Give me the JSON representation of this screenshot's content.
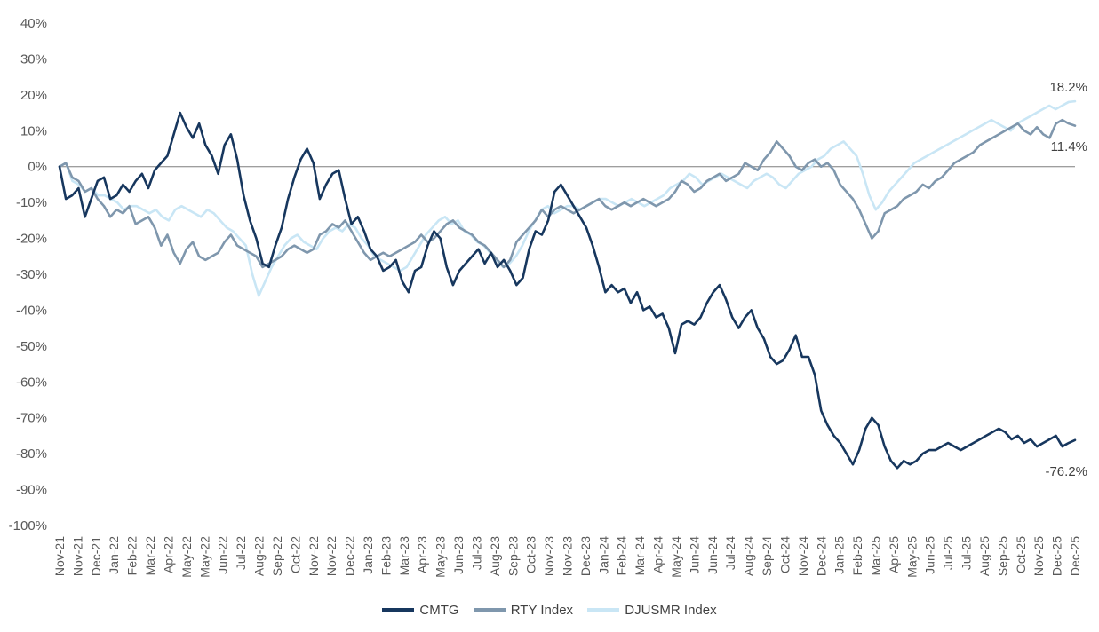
{
  "chart_data": {
    "type": "line",
    "title": "",
    "xlabel": "",
    "ylabel": "",
    "ylim": [
      -100,
      40
    ],
    "y_ticks": [
      "40%",
      "30%",
      "20%",
      "10%",
      "0%",
      "-10%",
      "-20%",
      "-30%",
      "-40%",
      "-50%",
      "-60%",
      "-70%",
      "-80%",
      "-90%",
      "-100%"
    ],
    "x_ticks": [
      "Nov-21",
      "Nov-21",
      "Dec-21",
      "Jan-22",
      "Feb-22",
      "Mar-22",
      "Apr-22",
      "May-22",
      "May-22",
      "Jun-22",
      "Jul-22",
      "Aug-22",
      "Sep-22",
      "Oct-22",
      "Nov-22",
      "Nov-22",
      "Dec-22",
      "Jan-23",
      "Feb-23",
      "Mar-23",
      "Apr-23",
      "May-23",
      "Jun-23",
      "Jul-23",
      "Aug-23",
      "Sep-23",
      "Oct-23",
      "Nov-23",
      "Nov-23",
      "Dec-23",
      "Jan-24",
      "Feb-24",
      "Mar-24",
      "Apr-24",
      "May-24",
      "Jun-24",
      "Jun-24",
      "Jul-24",
      "Aug-24",
      "Sep-24",
      "Oct-24",
      "Nov-24",
      "Dec-24",
      "Jan-25",
      "Feb-25",
      "Mar-25",
      "Apr-25",
      "May-25",
      "Jun-25",
      "Jul-25",
      "Jul-25",
      "Aug-25",
      "Sep-25",
      "Oct-25",
      "Nov-25",
      "Dec-25",
      "Dec-25"
    ],
    "grid": false,
    "zero_line": true,
    "legend_position": "bottom",
    "series": [
      {
        "name": "CMTG",
        "color": "#17375e",
        "end_label": "-76.2%",
        "values": [
          0,
          -9,
          -8,
          -6,
          -14,
          -9,
          -4,
          -3,
          -9,
          -8,
          -5,
          -7,
          -4,
          -2,
          -6,
          -1,
          1,
          3,
          9,
          15,
          11,
          8,
          12,
          6,
          3,
          -2,
          6,
          9,
          2,
          -8,
          -15,
          -20,
          -27,
          -28,
          -22,
          -17,
          -9,
          -3,
          2,
          5,
          1,
          -9,
          -5,
          -2,
          -1,
          -9,
          -16,
          -14,
          -18,
          -23,
          -25,
          -29,
          -28,
          -26,
          -32,
          -35,
          -29,
          -28,
          -22,
          -18,
          -20,
          -28,
          -33,
          -29,
          -27,
          -25,
          -23,
          -27,
          -24,
          -28,
          -26,
          -29,
          -33,
          -31,
          -23,
          -18,
          -19,
          -15,
          -7,
          -5,
          -8,
          -11,
          -14,
          -17,
          -22,
          -28,
          -35,
          -33,
          -35,
          -34,
          -38,
          -35,
          -40,
          -39,
          -42,
          -41,
          -45,
          -52,
          -44,
          -43,
          -44,
          -42,
          -38,
          -35,
          -33,
          -37,
          -42,
          -45,
          -42,
          -40,
          -45,
          -48,
          -53,
          -55,
          -54,
          -51,
          -47,
          -53,
          -53,
          -58,
          -68,
          -72,
          -75,
          -77,
          -80,
          -83,
          -79,
          -73,
          -70,
          -72,
          -78,
          -82,
          -84,
          -82,
          -83,
          -82,
          -80,
          -79,
          -79,
          -78,
          -77,
          -78,
          -79,
          -78,
          -77,
          -76,
          -75,
          -74,
          -73,
          -74,
          -76,
          -75,
          -77,
          -76,
          -78,
          -77,
          -76,
          -75,
          -78,
          -77,
          -76.2
        ]
      },
      {
        "name": "RTY Index",
        "color": "#7f97ad",
        "end_label": "11.4%",
        "values": [
          0,
          1,
          -3,
          -4,
          -7,
          -6,
          -9,
          -11,
          -14,
          -12,
          -13,
          -11,
          -16,
          -15,
          -14,
          -17,
          -22,
          -19,
          -24,
          -27,
          -23,
          -21,
          -25,
          -26,
          -25,
          -24,
          -21,
          -19,
          -22,
          -23,
          -24,
          -25,
          -28,
          -27,
          -26,
          -25,
          -23,
          -22,
          -23,
          -24,
          -23,
          -19,
          -18,
          -16,
          -17,
          -15,
          -18,
          -21,
          -24,
          -26,
          -25,
          -24,
          -25,
          -24,
          -23,
          -22,
          -21,
          -19,
          -21,
          -20,
          -18,
          -16,
          -15,
          -17,
          -18,
          -19,
          -21,
          -22,
          -24,
          -26,
          -28,
          -26,
          -21,
          -19,
          -17,
          -15,
          -12,
          -14,
          -12,
          -11,
          -12,
          -13,
          -12,
          -11,
          -10,
          -9,
          -11,
          -12,
          -11,
          -10,
          -11,
          -10,
          -9,
          -10,
          -11,
          -10,
          -9,
          -7,
          -4,
          -5,
          -7,
          -6,
          -4,
          -3,
          -2,
          -4,
          -3,
          -2,
          1,
          0,
          -1,
          2,
          4,
          7,
          5,
          3,
          0,
          -1,
          1,
          2,
          0,
          1,
          -1,
          -5,
          -7,
          -9,
          -12,
          -16,
          -20,
          -18,
          -13,
          -12,
          -11,
          -9,
          -8,
          -7,
          -5,
          -6,
          -4,
          -3,
          -1,
          1,
          2,
          3,
          4,
          6,
          7,
          8,
          9,
          10,
          11,
          12,
          10,
          9,
          11,
          9,
          8,
          12,
          13,
          12,
          11.4
        ]
      },
      {
        "name": "DJUSMR Index",
        "color": "#c9e6f5",
        "end_label": "18.2%",
        "values": [
          0,
          1,
          -4,
          -5,
          -7,
          -6,
          -8,
          -8,
          -9,
          -10,
          -12,
          -11,
          -11,
          -12,
          -13,
          -12,
          -14,
          -15,
          -12,
          -11,
          -12,
          -13,
          -14,
          -12,
          -13,
          -15,
          -17,
          -18,
          -20,
          -22,
          -30,
          -36,
          -32,
          -28,
          -25,
          -22,
          -20,
          -19,
          -21,
          -22,
          -23,
          -20,
          -18,
          -17,
          -18,
          -16,
          -17,
          -20,
          -22,
          -25,
          -26,
          -27,
          -28,
          -29,
          -28,
          -25,
          -22,
          -19,
          -17,
          -15,
          -14,
          -16,
          -15,
          -18,
          -19,
          -21,
          -22,
          -24,
          -26,
          -28,
          -27,
          -25,
          -22,
          -18,
          -15,
          -12,
          -11,
          -13,
          -12,
          -11,
          -11,
          -12,
          -11,
          -10,
          -9,
          -9,
          -10,
          -11,
          -10,
          -9,
          -10,
          -11,
          -10,
          -9,
          -8,
          -6,
          -5,
          -4,
          -2,
          -3,
          -5,
          -4,
          -3,
          -2,
          -3,
          -4,
          -5,
          -6,
          -4,
          -3,
          -2,
          -3,
          -5,
          -6,
          -4,
          -2,
          -1,
          0,
          2,
          3,
          5,
          6,
          7,
          5,
          3,
          -2,
          -8,
          -12,
          -10,
          -7,
          -5,
          -3,
          -1,
          1,
          2,
          3,
          4,
          5,
          6,
          7,
          8,
          9,
          10,
          11,
          12,
          13,
          12,
          11,
          10,
          12,
          13,
          14,
          15,
          16,
          17,
          16,
          17,
          18,
          18.2
        ]
      }
    ]
  }
}
